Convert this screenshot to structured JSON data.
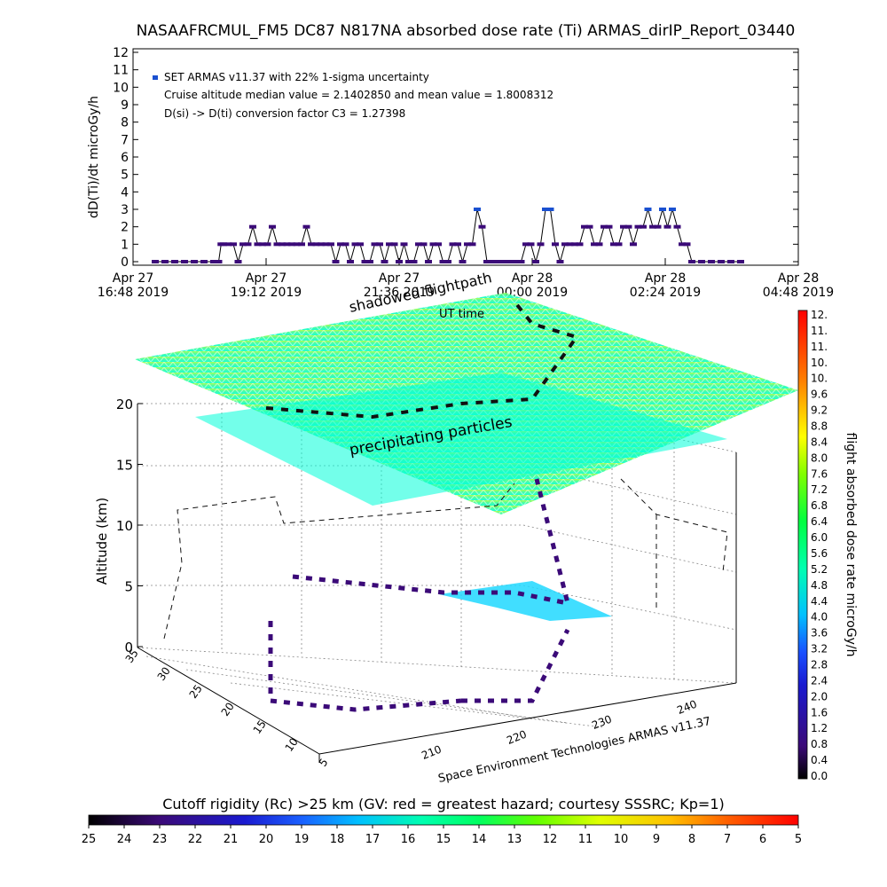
{
  "title": "NASAAFRCMUL_FM5 DC87 N817NA absorbed dose rate (Ti) ARMAS_dirIP_Report_03440",
  "top_chart": {
    "ylabel": "dD(Ti)/dt microGy/h",
    "yticks": [
      "0",
      "1",
      "2",
      "3",
      "4",
      "5",
      "6",
      "7",
      "8",
      "9",
      "10",
      "11",
      "12"
    ],
    "xticks": [
      {
        "line1": "Apr 27",
        "line2": "16:48 2019"
      },
      {
        "line1": "Apr 27",
        "line2": "19:12 2019"
      },
      {
        "line1": "Apr 27",
        "line2": "21:36 2019"
      },
      {
        "line1": "Apr 28",
        "line2": "00:00 2019"
      },
      {
        "line1": "Apr 28",
        "line2": "02:24 2019"
      },
      {
        "line1": "Apr 28",
        "line2": "04:48 2019"
      }
    ],
    "legend_line1": "SET ARMAS v11.37 with 22% 1-sigma uncertainty",
    "legend_line2": "Cruise altitude median value = 2.1402850 and mean value = 1.8008312",
    "legend_line3": "D(si) -> D(ti) conversion factor C3 = 1.27398",
    "colors": {
      "marker": "#3b0a78",
      "highlight": "#1a50d0"
    }
  },
  "chart_data": [
    {
      "type": "line",
      "xlabel": "",
      "ylabel": "dD(Ti)/dt microGy/h",
      "ylim": [
        0,
        12
      ],
      "xlim_hours_from_start": [
        0,
        12
      ],
      "series": [
        {
          "name": "SET ARMAS v11.37 with 22% 1-sigma uncertainty",
          "x_hours": [
            0,
            0.2,
            0.4,
            0.6,
            0.8,
            1.0,
            1.2,
            1.3,
            1.35,
            1.4,
            1.5,
            1.6,
            1.7,
            1.8,
            1.9,
            2.0,
            2.1,
            2.2,
            2.3,
            2.4,
            2.5,
            2.6,
            2.7,
            2.8,
            2.9,
            3.0,
            3.1,
            3.2,
            3.3,
            3.4,
            3.5,
            3.6,
            3.7,
            3.8,
            3.9,
            4.0,
            4.1,
            4.2,
            4.3,
            4.4,
            4.5,
            4.6,
            4.7,
            4.8,
            4.9,
            5.0,
            5.1,
            5.2,
            5.3,
            5.4,
            5.5,
            5.6,
            5.7,
            5.8,
            5.9,
            6.0,
            6.1,
            6.2,
            6.3,
            6.4,
            6.5,
            6.6,
            6.7,
            6.8,
            6.9,
            7.0,
            7.1,
            7.2,
            7.3,
            7.4,
            7.5,
            7.6,
            7.7,
            7.8,
            7.9,
            8.0,
            8.1,
            8.2,
            8.3,
            8.4,
            8.5,
            8.6,
            8.7,
            8.8,
            8.9,
            9.0,
            9.1,
            9.2,
            9.3,
            9.4,
            9.5,
            9.6,
            9.7,
            9.8,
            9.9,
            10.0,
            10.1,
            10.2,
            10.3,
            10.4,
            10.5,
            10.6,
            10.7,
            10.8,
            10.9,
            11.0,
            11.2,
            11.4,
            11.6,
            11.8,
            12.0
          ],
          "y": [
            0,
            0,
            0,
            0,
            0,
            0,
            0,
            0,
            1,
            1,
            1,
            1,
            0,
            1,
            1,
            2,
            1,
            1,
            1,
            2,
            1,
            1,
            1,
            1,
            1,
            1,
            2,
            1,
            1,
            1,
            1,
            1,
            0,
            1,
            1,
            0,
            1,
            1,
            0,
            0,
            1,
            1,
            0,
            1,
            1,
            0,
            1,
            0,
            0,
            1,
            1,
            0,
            1,
            1,
            0,
            0,
            1,
            1,
            0,
            1,
            1,
            3,
            2,
            0,
            0,
            0,
            0,
            0,
            0,
            0,
            0,
            1,
            1,
            0,
            1,
            3,
            3,
            1,
            0,
            1,
            1,
            1,
            1,
            2,
            2,
            1,
            1,
            2,
            2,
            1,
            1,
            2,
            2,
            1,
            2,
            2,
            3,
            2,
            2,
            3,
            2,
            3,
            2,
            1,
            1,
            0,
            0,
            0,
            0,
            0,
            0
          ]
        }
      ]
    },
    {
      "type": "scatter",
      "title": "",
      "xlabel": "",
      "ylabel": "Altitude (km)",
      "zlim": [
        0,
        20
      ],
      "ticks_z": [
        "0",
        "5",
        "10",
        "15",
        "20"
      ],
      "ticks_lat": [
        "5",
        "10",
        "15",
        "20",
        "25",
        "30",
        "35"
      ],
      "ticks_lon": [
        "210",
        "220",
        "230",
        "240"
      ],
      "annotations": [
        "shadowed flightpath",
        "UT time",
        "precipitating particles",
        "Space Environment Technologies ARMAS v11.37"
      ]
    }
  ],
  "colorbar_right": {
    "label": "flight absorbed dose rate microGy/h",
    "ticks": [
      "12.",
      "11.",
      "11.",
      "10.",
      "10.",
      "9.6",
      "9.2",
      "8.8",
      "8.4",
      "8.0",
      "7.6",
      "7.2",
      "6.8",
      "6.4",
      "6.0",
      "5.6",
      "5.2",
      "4.8",
      "4.4",
      "4.0",
      "3.6",
      "3.2",
      "2.8",
      "2.4",
      "2.0",
      "1.6",
      "1.2",
      "0.8",
      "0.4",
      "0.0"
    ]
  },
  "colorbar_bottom": {
    "label": "Cutoff rigidity (Rc) >25 km (GV: red = greatest hazard; courtesy SSSRC; Kp=1)",
    "ticks": [
      "25",
      "24",
      "23",
      "22",
      "21",
      "20",
      "19",
      "18",
      "17",
      "16",
      "15",
      "14",
      "13",
      "12",
      "11",
      "10",
      "9",
      "8",
      "7",
      "6",
      "5"
    ]
  },
  "colormap": [
    "#000000",
    "#3b0a78",
    "#1a1ad0",
    "#1a50ff",
    "#00a0ff",
    "#00e0ff",
    "#00ffb0",
    "#00ff40",
    "#60ff00",
    "#c0ff00",
    "#ffff00",
    "#ffc000",
    "#ff8000",
    "#ff4000",
    "#ff0000"
  ]
}
